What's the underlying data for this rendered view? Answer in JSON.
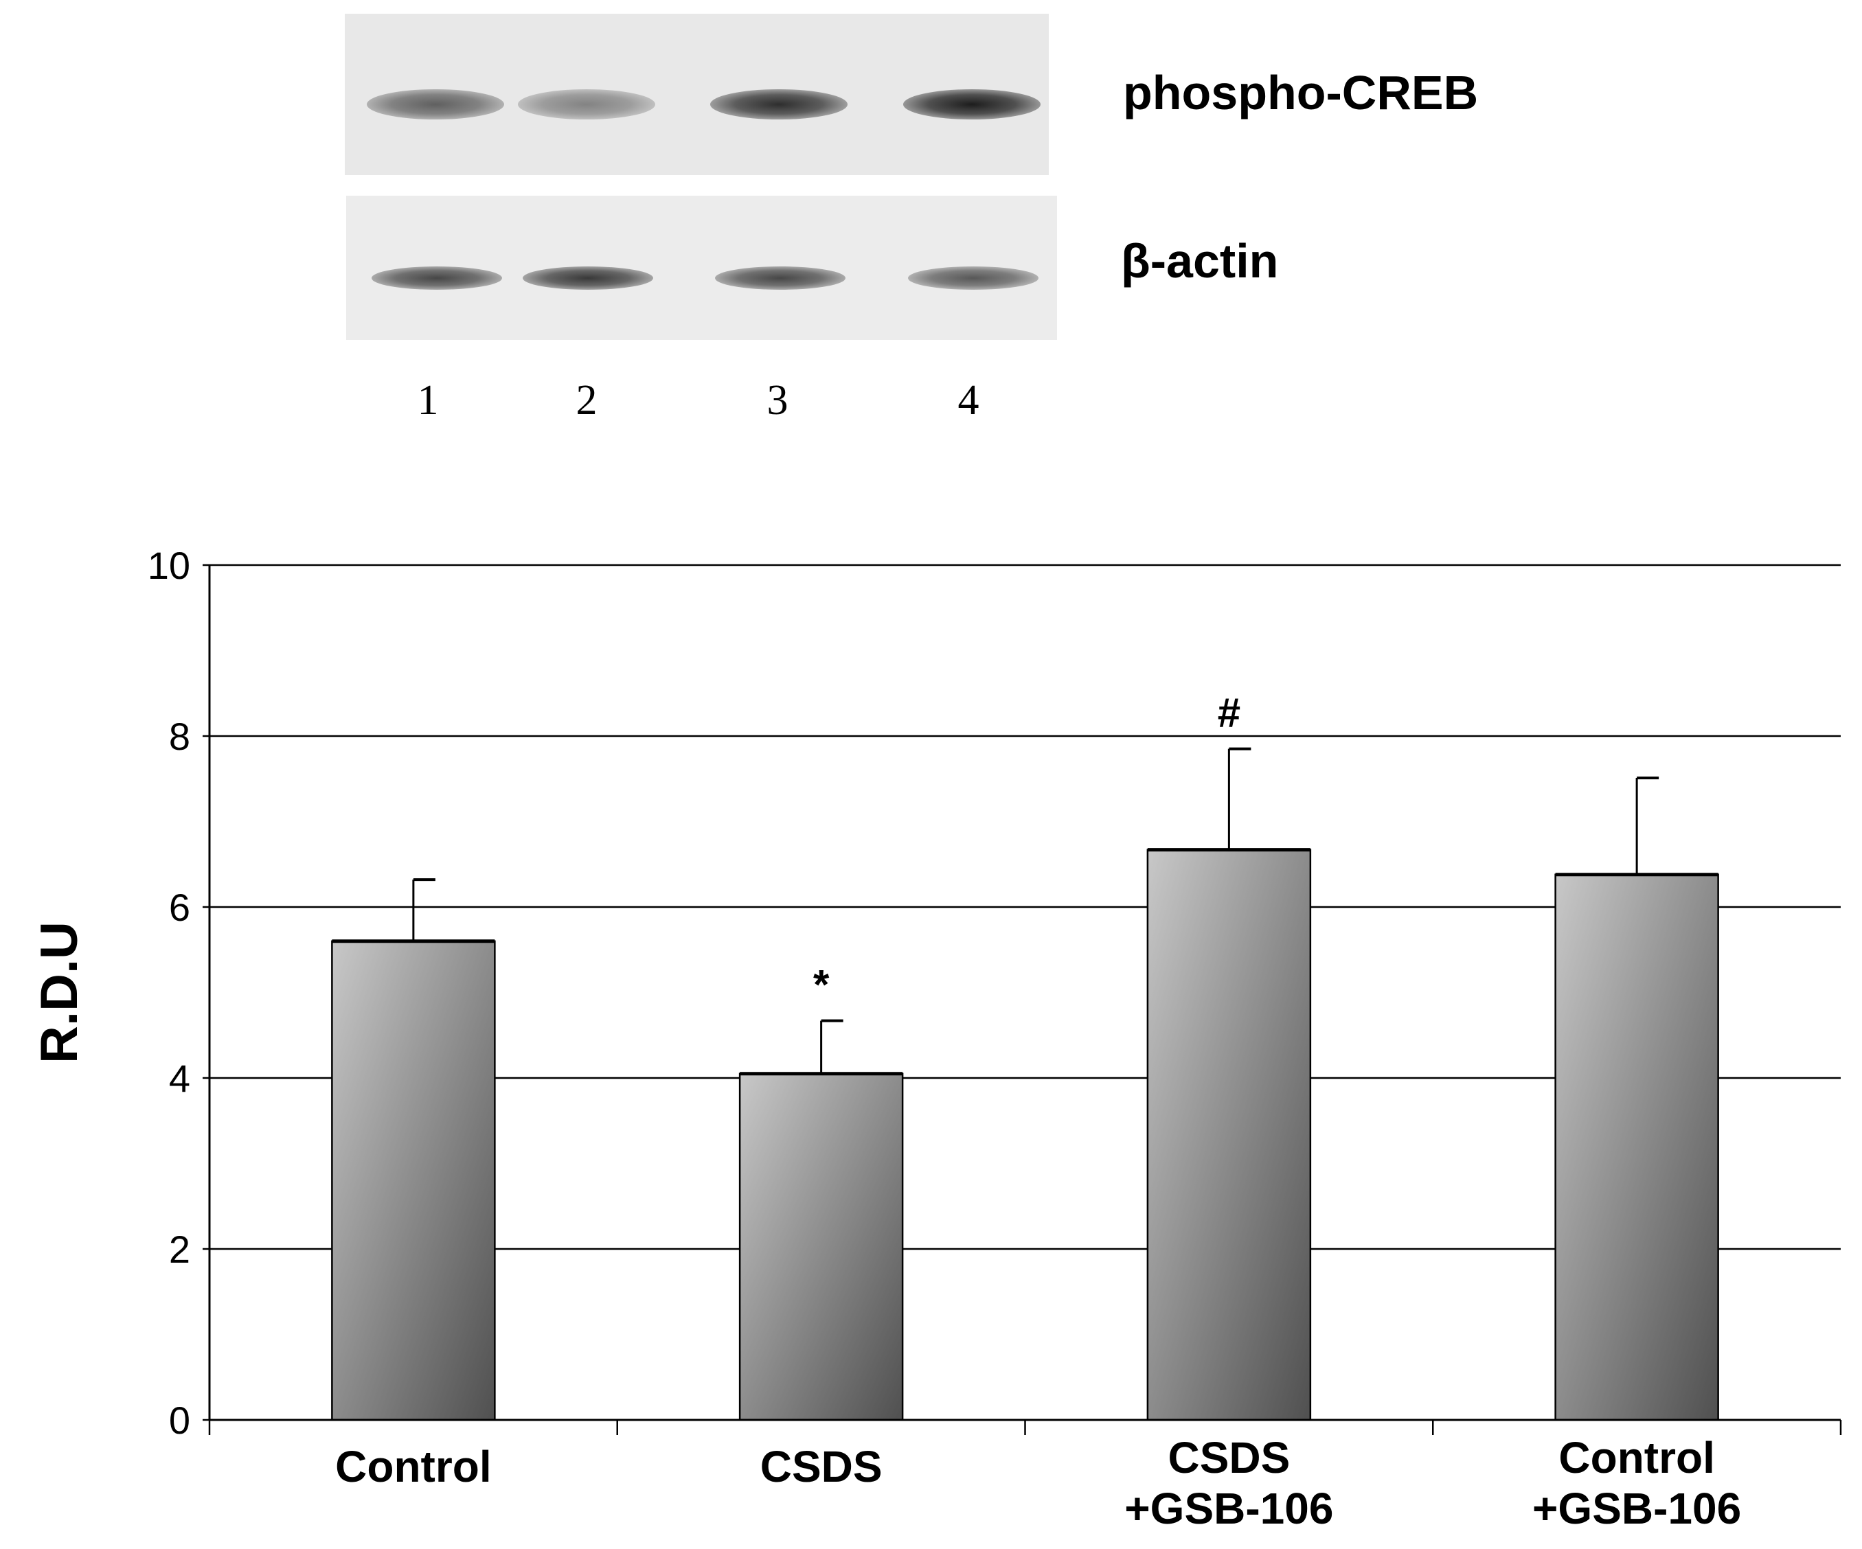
{
  "blot": {
    "rows": [
      {
        "label": "phospho-CREB",
        "band_intensity": [
          0.55,
          0.35,
          0.85,
          0.95
        ]
      },
      {
        "label": "β-actin",
        "band_intensity": [
          0.7,
          0.78,
          0.7,
          0.6
        ]
      }
    ],
    "lanes": [
      "1",
      "2",
      "3",
      "4"
    ]
  },
  "chart_data": {
    "type": "bar",
    "categories": [
      [
        "Control"
      ],
      [
        "CSDS"
      ],
      [
        "CSDS",
        "+GSB-106"
      ],
      [
        "Control",
        "+GSB-106"
      ]
    ],
    "values": [
      5.6,
      4.05,
      6.67,
      6.38
    ],
    "errors": [
      0.72,
      0.62,
      1.18,
      1.13
    ],
    "annotations": [
      "",
      "*",
      "#",
      ""
    ],
    "title": "",
    "xlabel": "",
    "ylabel": "R.D.U",
    "ylim": [
      0,
      10
    ],
    "yticks": [
      "0",
      "2",
      "4",
      "6",
      "8",
      "10"
    ],
    "grid": true,
    "legend": "none",
    "colors": {
      "bar_light": "#c8c8c8",
      "bar_dark": "#505050",
      "axis": "#000000"
    }
  }
}
